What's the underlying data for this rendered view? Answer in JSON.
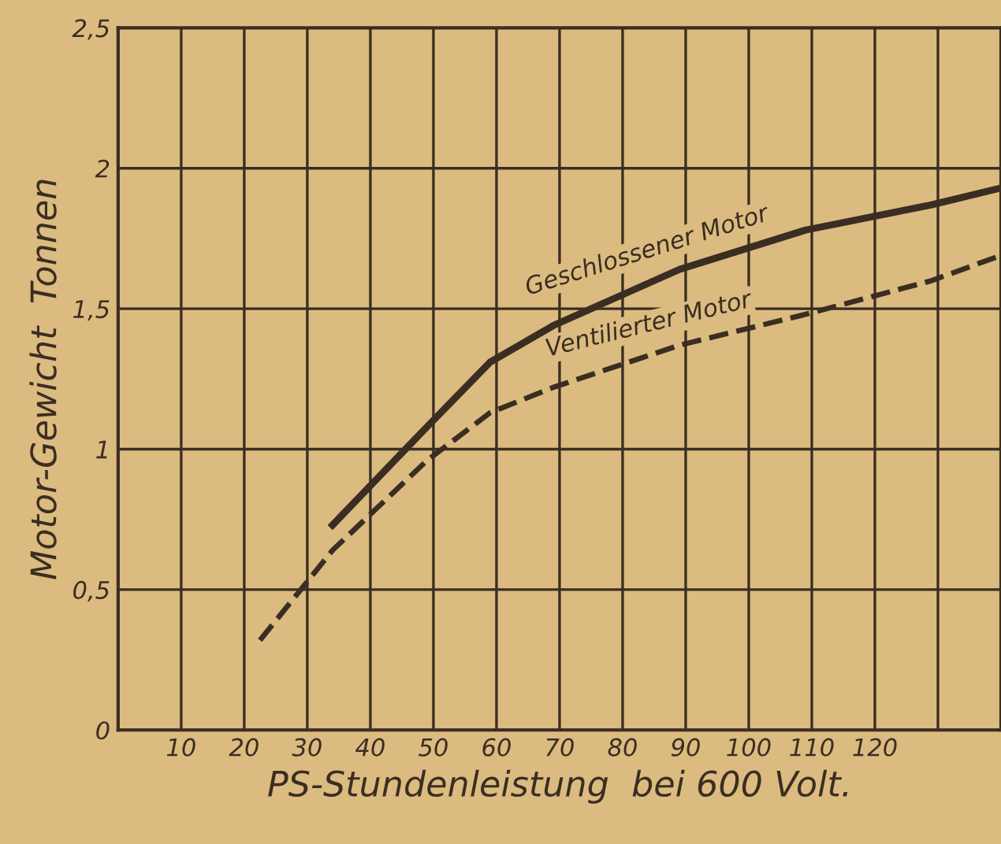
{
  "chart_data": {
    "type": "line",
    "xlabel": "PS-Stundenleistung  bei 600 Volt.",
    "ylabel": "Motor-Gewicht  Tonnen",
    "series": [
      {
        "name": "Geschlossener Motor",
        "color": "#3a2e22",
        "line_style": "solid",
        "x": [
          34,
          49,
          59,
          69,
          89,
          109,
          129,
          140
        ],
        "values": [
          0.73,
          1.08,
          1.31,
          1.44,
          1.64,
          1.78,
          1.87,
          1.93
        ]
      },
      {
        "name": "Ventilierter Motor",
        "color": "#3a2e22",
        "line_style": "dashed",
        "x": [
          22.5,
          34,
          49,
          59,
          69,
          89,
          109,
          129,
          140
        ],
        "values": [
          0.32,
          0.64,
          0.96,
          1.13,
          1.22,
          1.37,
          1.48,
          1.6,
          1.69
        ]
      }
    ],
    "xlim": [
      0,
      140
    ],
    "xticks": [
      10,
      20,
      30,
      40,
      50,
      60,
      70,
      80,
      90,
      100,
      110,
      120,
      {
        "value": 130,
        "label": null
      },
      {
        "value": 140,
        "label": null
      }
    ],
    "ylim": [
      0,
      2.5
    ],
    "yticks": [
      0,
      {
        "value": 0.5,
        "label": "0,5"
      },
      1,
      {
        "value": 1.5,
        "label": "1,5"
      },
      2,
      {
        "value": 2.5,
        "label": "2,5"
      }
    ],
    "grid": true,
    "legend": false,
    "marker": "none"
  }
}
